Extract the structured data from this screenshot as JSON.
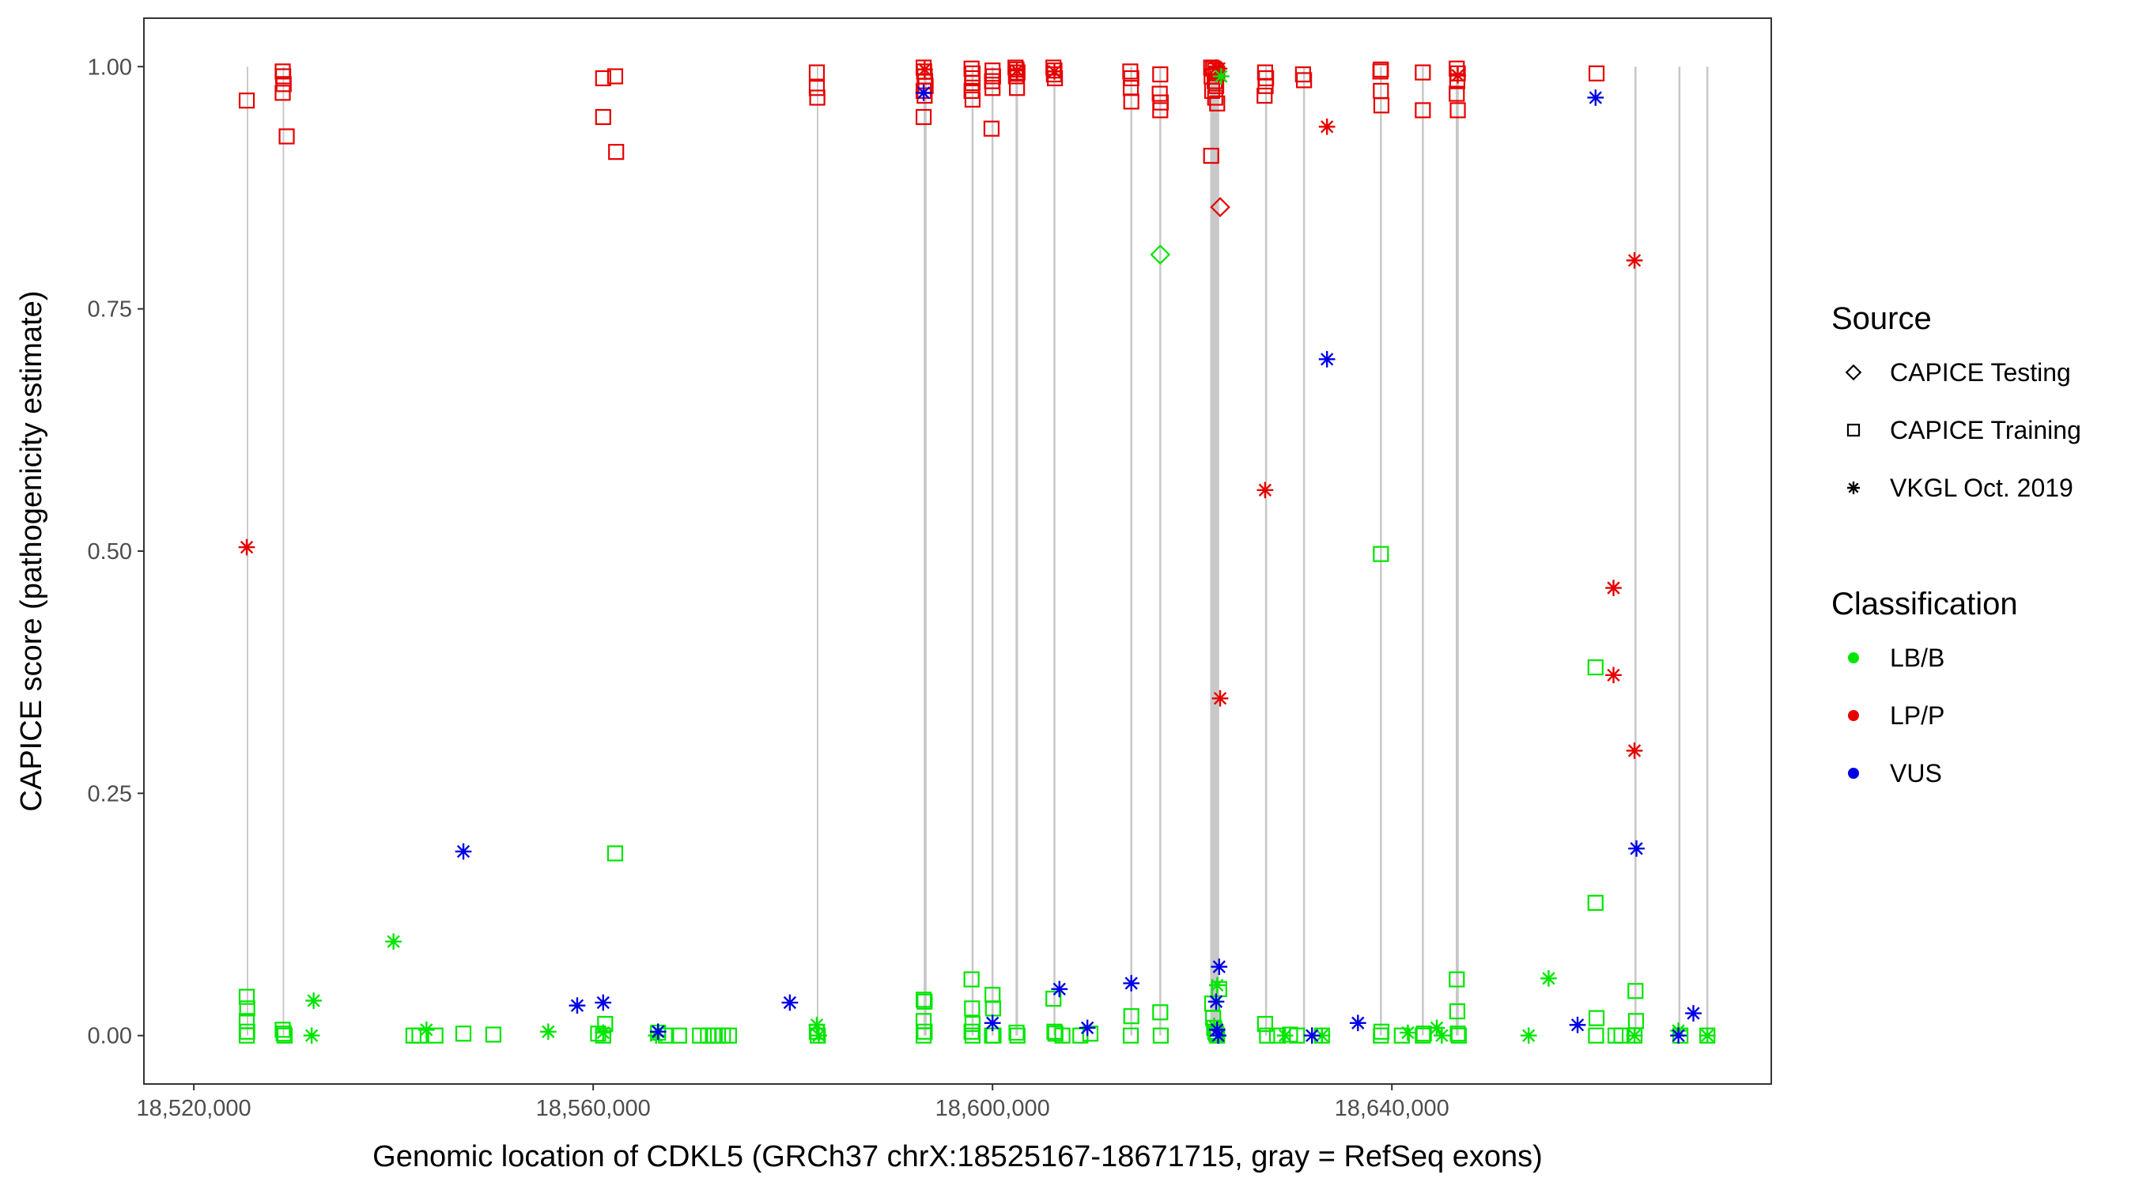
{
  "chart_data": {
    "type": "scatter",
    "title": "",
    "xlabel": "Genomic location of CDKL5 (GRCh37 chrX:18525167-18671715, gray = RefSeq exons)",
    "ylabel": "CAPICE score (pathogenicity estimate)",
    "xlim": [
      18515000,
      18678000
    ],
    "ylim": [
      -0.05,
      1.05
    ],
    "x_ticks": [
      18520000,
      18560000,
      18600000,
      18640000
    ],
    "x_tick_labels": [
      "18,520,000",
      "18,560,000",
      "18,600,000",
      "18,640,000"
    ],
    "y_ticks": [
      0,
      0.25,
      0.5,
      0.75,
      1
    ],
    "y_tick_labels": [
      "0.00",
      "0.25",
      "0.50",
      "0.75",
      "1.00"
    ],
    "grid": false,
    "exons": [
      [
        18525300,
        18525450
      ],
      [
        18528900,
        18529050
      ],
      [
        18582400,
        18582550
      ],
      [
        18593100,
        18593400
      ],
      [
        18597900,
        18598100
      ],
      [
        18599900,
        18600100
      ],
      [
        18602300,
        18602550
      ],
      [
        18606100,
        18606300
      ],
      [
        18613800,
        18614000
      ],
      [
        18616700,
        18616900
      ],
      [
        18621800,
        18622700
      ],
      [
        18627300,
        18627500
      ],
      [
        18631100,
        18631300
      ],
      [
        18638800,
        18639000
      ],
      [
        18643000,
        18643200
      ],
      [
        18646400,
        18646700
      ],
      [
        18664300,
        18664500
      ],
      [
        18668700,
        18668900
      ],
      [
        18671500,
        18671700
      ]
    ],
    "legends": [
      {
        "title": "Source",
        "entries": [
          {
            "label": "CAPICE Testing",
            "shape": "diamond"
          },
          {
            "label": "CAPICE Training",
            "shape": "square"
          },
          {
            "label": "VKGL Oct. 2019",
            "shape": "asterisk"
          }
        ]
      },
      {
        "title": "Classification",
        "entries": [
          {
            "label": "LB/B",
            "color": "#00e600"
          },
          {
            "label": "LP/P",
            "color": "#e60000"
          },
          {
            "label": "VUS",
            "color": "#0000e6"
          }
        ]
      }
    ],
    "legend_position": "right",
    "series": [
      {
        "name": "CAPICE Training · LP/P",
        "shape": "square",
        "color": "#e60000",
        "points": [
          [
            18525300,
            0.965
          ],
          [
            18528900,
            0.995
          ],
          [
            18528950,
            0.99
          ],
          [
            18529000,
            0.982
          ],
          [
            18528900,
            0.973
          ],
          [
            18529300,
            0.928
          ],
          [
            18561000,
            0.988
          ],
          [
            18562200,
            0.99
          ],
          [
            18561000,
            0.948
          ],
          [
            18562300,
            0.912
          ],
          [
            18582400,
            0.994
          ],
          [
            18582400,
            0.978
          ],
          [
            18582450,
            0.968
          ],
          [
            18593100,
            0.999
          ],
          [
            18593150,
            0.995
          ],
          [
            18593200,
            0.99
          ],
          [
            18593250,
            0.985
          ],
          [
            18593300,
            0.98
          ],
          [
            18593100,
            0.975
          ],
          [
            18593200,
            0.97
          ],
          [
            18593100,
            0.948
          ],
          [
            18597900,
            0.998
          ],
          [
            18598000,
            0.993
          ],
          [
            18597950,
            0.988
          ],
          [
            18598000,
            0.983
          ],
          [
            18597900,
            0.975
          ],
          [
            18598000,
            0.966
          ],
          [
            18600000,
            0.996
          ],
          [
            18600050,
            0.99
          ],
          [
            18599950,
            0.985
          ],
          [
            18600000,
            0.978
          ],
          [
            18599900,
            0.936
          ],
          [
            18602300,
            0.999
          ],
          [
            18602400,
            0.997
          ],
          [
            18602500,
            0.994
          ],
          [
            18602350,
            0.99
          ],
          [
            18602450,
            0.978
          ],
          [
            18606100,
            0.999
          ],
          [
            18606200,
            0.996
          ],
          [
            18606150,
            0.992
          ],
          [
            18606250,
            0.988
          ],
          [
            18613800,
            0.995
          ],
          [
            18613900,
            0.988
          ],
          [
            18613850,
            0.978
          ],
          [
            18613900,
            0.964
          ],
          [
            18616800,
            0.992
          ],
          [
            18616750,
            0.972
          ],
          [
            18616850,
            0.963
          ],
          [
            18616800,
            0.955
          ],
          [
            18621900,
            0.999
          ],
          [
            18622100,
            0.998
          ],
          [
            18622300,
            0.996
          ],
          [
            18622500,
            0.993
          ],
          [
            18621950,
            0.99
          ],
          [
            18622250,
            0.985
          ],
          [
            18622400,
            0.98
          ],
          [
            18622000,
            0.975
          ],
          [
            18622300,
            0.968
          ],
          [
            18622500,
            0.962
          ],
          [
            18621900,
            0.908
          ],
          [
            18627300,
            0.994
          ],
          [
            18627400,
            0.988
          ],
          [
            18627350,
            0.98
          ],
          [
            18627250,
            0.97
          ],
          [
            18631100,
            0.992
          ],
          [
            18631200,
            0.986
          ],
          [
            18638900,
            0.997
          ],
          [
            18638850,
            0.995
          ],
          [
            18638900,
            0.975
          ],
          [
            18638950,
            0.96
          ],
          [
            18643100,
            0.994
          ],
          [
            18643100,
            0.955
          ],
          [
            18646500,
            0.998
          ],
          [
            18646600,
            0.993
          ],
          [
            18646550,
            0.985
          ],
          [
            18646500,
            0.972
          ],
          [
            18646600,
            0.955
          ],
          [
            18660500,
            0.993
          ]
        ]
      },
      {
        "name": "CAPICE Training · LB/B",
        "shape": "square",
        "color": "#00e600",
        "points": [
          [
            18525300,
            0.04
          ],
          [
            18525350,
            0.028
          ],
          [
            18525300,
            0.015
          ],
          [
            18525350,
            0.004
          ],
          [
            18525300,
            0.0
          ],
          [
            18528900,
            0.006
          ],
          [
            18529000,
            0.002
          ],
          [
            18529100,
            0.0
          ],
          [
            18542000,
            0.0
          ],
          [
            18542600,
            0.0
          ],
          [
            18544200,
            0.0
          ],
          [
            18547000,
            0.002
          ],
          [
            18550000,
            0.001
          ],
          [
            18560500,
            0.002
          ],
          [
            18561200,
            0.012
          ],
          [
            18561000,
            0.0
          ],
          [
            18562200,
            0.188
          ],
          [
            18566500,
            0.003
          ],
          [
            18567300,
            0.0
          ],
          [
            18568600,
            0.0
          ],
          [
            18570700,
            0.0
          ],
          [
            18571500,
            0.0
          ],
          [
            18572000,
            0.0
          ],
          [
            18572500,
            0.0
          ],
          [
            18573000,
            0.0
          ],
          [
            18573600,
            0.0
          ],
          [
            18582400,
            0.004
          ],
          [
            18582500,
            0.0
          ],
          [
            18593100,
            0.037
          ],
          [
            18593200,
            0.035
          ],
          [
            18593100,
            0.015
          ],
          [
            18593200,
            0.004
          ],
          [
            18593100,
            0.0
          ],
          [
            18597900,
            0.058
          ],
          [
            18597950,
            0.028
          ],
          [
            18598000,
            0.012
          ],
          [
            18597900,
            0.004
          ],
          [
            18598000,
            0.0
          ],
          [
            18600000,
            0.042
          ],
          [
            18600050,
            0.028
          ],
          [
            18599950,
            0.0
          ],
          [
            18600100,
            0.0
          ],
          [
            18602400,
            0.003
          ],
          [
            18602500,
            0.0
          ],
          [
            18606100,
            0.038
          ],
          [
            18606200,
            0.004
          ],
          [
            18606300,
            0.002
          ],
          [
            18607000,
            0.0
          ],
          [
            18608800,
            0.0
          ],
          [
            18609800,
            0.002
          ],
          [
            18613900,
            0.02
          ],
          [
            18613850,
            0.0
          ],
          [
            18616800,
            0.024
          ],
          [
            18616850,
            0.0
          ],
          [
            18622000,
            0.033
          ],
          [
            18622100,
            0.018
          ],
          [
            18622200,
            0.008
          ],
          [
            18622300,
            0.004
          ],
          [
            18622400,
            0.002
          ],
          [
            18622500,
            0.0
          ],
          [
            18622700,
            0.048
          ],
          [
            18627300,
            0.012
          ],
          [
            18627500,
            0.0
          ],
          [
            18628500,
            0.0
          ],
          [
            18629800,
            0.001
          ],
          [
            18630500,
            0.0
          ],
          [
            18633000,
            0.0
          ],
          [
            18638900,
            0.497
          ],
          [
            18638950,
            0.004
          ],
          [
            18638900,
            0.0
          ],
          [
            18641000,
            0.0
          ],
          [
            18643100,
            0.0
          ],
          [
            18643200,
            0.002
          ],
          [
            18646500,
            0.058
          ],
          [
            18646550,
            0.025
          ],
          [
            18646600,
            0.002
          ],
          [
            18646700,
            0.0
          ],
          [
            18660400,
            0.38
          ],
          [
            18660400,
            0.137
          ],
          [
            18660500,
            0.018
          ],
          [
            18660450,
            0.0
          ],
          [
            18662400,
            0.0
          ],
          [
            18663000,
            0.0
          ],
          [
            18664400,
            0.046
          ],
          [
            18664450,
            0.015
          ],
          [
            18664300,
            0.0
          ],
          [
            18668900,
            0.0
          ],
          [
            18671600,
            0.0
          ]
        ]
      },
      {
        "name": "CAPICE Testing · LP/P",
        "shape": "diamond",
        "color": "#e60000",
        "points": [
          [
            18622800,
            0.855
          ]
        ]
      },
      {
        "name": "CAPICE Testing · LB/B",
        "shape": "diamond",
        "color": "#00e600",
        "points": [
          [
            18616800,
            0.806
          ]
        ]
      },
      {
        "name": "VKGL Oct. 2019 · LP/P",
        "shape": "asterisk",
        "color": "#e60000",
        "points": [
          [
            18525300,
            0.504
          ],
          [
            18622800,
            0.348
          ],
          [
            18627300,
            0.563
          ],
          [
            18633500,
            0.938
          ],
          [
            18662200,
            0.462
          ],
          [
            18662200,
            0.372
          ],
          [
            18664300,
            0.8
          ],
          [
            18664300,
            0.294
          ],
          [
            18622400,
            0.999
          ],
          [
            18622700,
            0.998
          ],
          [
            18606200,
            0.995
          ],
          [
            18602450,
            0.996
          ],
          [
            18646600,
            0.991
          ],
          [
            18593200,
            0.997
          ]
        ]
      },
      {
        "name": "VKGL Oct. 2019 · LB/B",
        "shape": "asterisk",
        "color": "#00e600",
        "points": [
          [
            18532000,
            0.036
          ],
          [
            18531800,
            0.0
          ],
          [
            18540000,
            0.097
          ],
          [
            18543300,
            0.006
          ],
          [
            18555500,
            0.004
          ],
          [
            18561000,
            0.003
          ],
          [
            18566300,
            0.0
          ],
          [
            18582400,
            0.011
          ],
          [
            18582600,
            0.0
          ],
          [
            18622500,
            0.052
          ],
          [
            18622200,
            0.01
          ],
          [
            18622600,
            0.0
          ],
          [
            18629300,
            0.0
          ],
          [
            18633000,
            0.0
          ],
          [
            18641600,
            0.003
          ],
          [
            18644500,
            0.008
          ],
          [
            18645000,
            0.0
          ],
          [
            18653700,
            0.0
          ],
          [
            18655700,
            0.059
          ],
          [
            18664300,
            0.0
          ],
          [
            18668700,
            0.005
          ],
          [
            18671600,
            0.0
          ],
          [
            18622900,
            0.99
          ]
        ]
      },
      {
        "name": "VKGL Oct. 2019 · VUS",
        "shape": "asterisk",
        "color": "#0000e6",
        "points": [
          [
            18547000,
            0.19
          ],
          [
            18558400,
            0.031
          ],
          [
            18561000,
            0.034
          ],
          [
            18566500,
            0.004
          ],
          [
            18579700,
            0.034
          ],
          [
            18593100,
            0.973
          ],
          [
            18600000,
            0.013
          ],
          [
            18606700,
            0.048
          ],
          [
            18609500,
            0.008
          ],
          [
            18613900,
            0.054
          ],
          [
            18622400,
            0.035
          ],
          [
            18622700,
            0.071
          ],
          [
            18622500,
            0.006
          ],
          [
            18622600,
            0.0
          ],
          [
            18633500,
            0.698
          ],
          [
            18632000,
            0.0
          ],
          [
            18636600,
            0.013
          ],
          [
            18658600,
            0.011
          ],
          [
            18660400,
            0.968
          ],
          [
            18664500,
            0.193
          ],
          [
            18668700,
            0.0
          ],
          [
            18670200,
            0.023
          ]
        ]
      }
    ]
  }
}
